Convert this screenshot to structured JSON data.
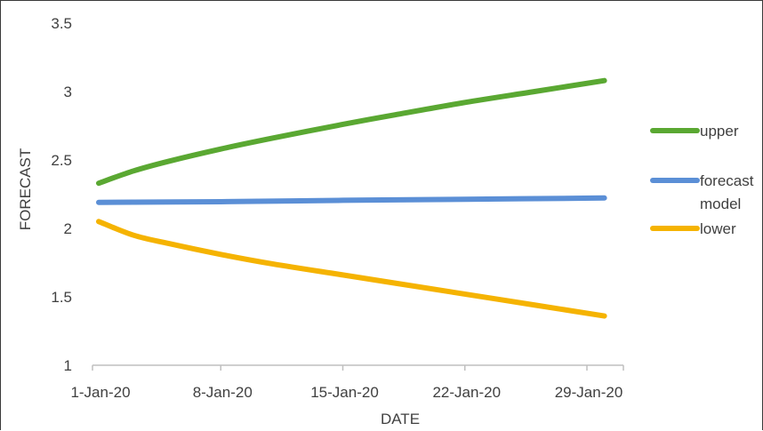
{
  "chart_data": {
    "type": "line",
    "title": "",
    "xlabel": "DATE",
    "ylabel": "FORECAST",
    "ylim": [
      1,
      3.5
    ],
    "yticks": [
      "1",
      "1.5",
      "2",
      "2.5",
      "3",
      "3.5"
    ],
    "xlim": [
      "2020-01-01",
      "2020-01-30"
    ],
    "xticks": [
      {
        "date": "2020-01-01",
        "label": "1-Jan-20"
      },
      {
        "date": "2020-01-08",
        "label": "8-Jan-20"
      },
      {
        "date": "2020-01-15",
        "label": "15-Jan-20"
      },
      {
        "date": "2020-01-22",
        "label": "22-Jan-20"
      },
      {
        "date": "2020-01-29",
        "label": "29-Jan-20"
      }
    ],
    "grid": false,
    "legend_position": "right",
    "series": [
      {
        "name": "upper",
        "color": "#5aa832",
        "points": [
          {
            "x": "2020-01-01",
            "y": 2.33
          },
          {
            "x": "2020-01-03",
            "y": 2.42
          },
          {
            "x": "2020-01-05",
            "y": 2.49
          },
          {
            "x": "2020-01-08",
            "y": 2.58
          },
          {
            "x": "2020-01-11",
            "y": 2.66
          },
          {
            "x": "2020-01-15",
            "y": 2.76
          },
          {
            "x": "2020-01-18",
            "y": 2.83
          },
          {
            "x": "2020-01-22",
            "y": 2.92
          },
          {
            "x": "2020-01-26",
            "y": 3.0
          },
          {
            "x": "2020-01-30",
            "y": 3.08
          }
        ]
      },
      {
        "name": "forecast model",
        "color": "#5b8fd6",
        "points": [
          {
            "x": "2020-01-01",
            "y": 2.19
          },
          {
            "x": "2020-01-08",
            "y": 2.195
          },
          {
            "x": "2020-01-15",
            "y": 2.205
          },
          {
            "x": "2020-01-22",
            "y": 2.213
          },
          {
            "x": "2020-01-30",
            "y": 2.222
          }
        ]
      },
      {
        "name": "lower",
        "color": "#f5b301",
        "points": [
          {
            "x": "2020-01-01",
            "y": 2.05
          },
          {
            "x": "2020-01-03",
            "y": 1.95
          },
          {
            "x": "2020-01-05",
            "y": 1.89
          },
          {
            "x": "2020-01-08",
            "y": 1.81
          },
          {
            "x": "2020-01-11",
            "y": 1.74
          },
          {
            "x": "2020-01-15",
            "y": 1.66
          },
          {
            "x": "2020-01-18",
            "y": 1.6
          },
          {
            "x": "2020-01-22",
            "y": 1.52
          },
          {
            "x": "2020-01-26",
            "y": 1.44
          },
          {
            "x": "2020-01-30",
            "y": 1.36
          }
        ]
      }
    ],
    "legend": [
      {
        "series": "upper",
        "lines": [
          "upper"
        ]
      },
      {
        "series": "forecast model",
        "lines": [
          "forecast",
          "model"
        ]
      },
      {
        "series": "lower",
        "lines": [
          "lower"
        ]
      }
    ]
  }
}
